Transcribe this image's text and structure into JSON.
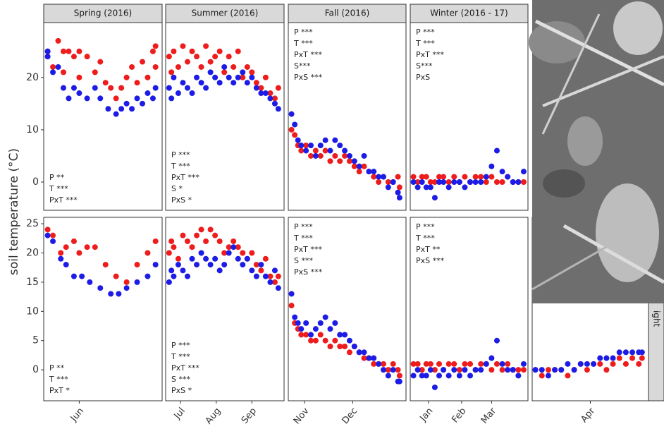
{
  "chart_data": [
    {
      "type": "scatter",
      "title": "Spring (2016)",
      "y_label": "soil temperature (°C)",
      "xlim": [
        138.5,
        183.5
      ],
      "ylim": [
        -5.4,
        30.5
      ],
      "yticks": [
        0,
        10,
        20
      ],
      "annotations": [
        "P **",
        "T ***",
        "PxT ***"
      ],
      "series": [
        {
          "color": "#ee1c1c",
          "x": [
            140,
            140,
            142,
            144,
            146,
            146,
            148,
            150,
            152,
            152,
            155,
            158,
            160,
            162,
            164,
            166,
            168,
            170,
            172,
            174,
            176,
            178,
            180,
            181,
            181
          ],
          "values": [
            25,
            24,
            22,
            27,
            21,
            25,
            25,
            24,
            25,
            20,
            24,
            21,
            23,
            19,
            18,
            16,
            18,
            20,
            22,
            19,
            23,
            20,
            25,
            26,
            22
          ]
        },
        {
          "color": "#1c1ce6",
          "x": [
            140,
            140,
            142,
            144,
            146,
            148,
            150,
            152,
            155,
            158,
            160,
            163,
            166,
            168,
            170,
            172,
            174,
            176,
            178,
            180,
            181
          ],
          "values": [
            24,
            25,
            21,
            22,
            18,
            16,
            18,
            17,
            16,
            18,
            16,
            14,
            13,
            14,
            15,
            14,
            16,
            15,
            17,
            16,
            18
          ]
        }
      ]
    },
    {
      "type": "scatter",
      "title": "Summer (2016)",
      "xlim": [
        169,
        272
      ],
      "ylim": [
        -5.4,
        30.5
      ],
      "annotations": [
        "P ***",
        "T ***",
        "PxT ***",
        "S *",
        "PxS *"
      ],
      "series": [
        {
          "color": "#ee1c1c",
          "x": [
            172,
            174,
            176,
            180,
            184,
            188,
            192,
            196,
            200,
            204,
            208,
            212,
            216,
            220,
            224,
            228,
            232,
            236,
            240,
            244,
            248,
            252,
            256,
            260,
            264,
            267
          ],
          "values": [
            24,
            21,
            25,
            22,
            26,
            23,
            25,
            24,
            22,
            26,
            23,
            24,
            25,
            21,
            24,
            22,
            25,
            20,
            22,
            21,
            19,
            18,
            20,
            17,
            16,
            18
          ]
        },
        {
          "color": "#1c1ce6",
          "x": [
            172,
            174,
            176,
            180,
            184,
            188,
            192,
            196,
            200,
            204,
            208,
            212,
            216,
            220,
            224,
            228,
            232,
            236,
            240,
            244,
            248,
            252,
            256,
            260,
            264,
            267
          ],
          "values": [
            18,
            16,
            20,
            17,
            19,
            18,
            17,
            20,
            19,
            18,
            21,
            20,
            19,
            22,
            20,
            19,
            20,
            21,
            19,
            20,
            18,
            17,
            17,
            16,
            15,
            14
          ]
        }
      ]
    },
    {
      "type": "scatter",
      "title": "Fall (2016)",
      "xlim": [
        295,
        368
      ],
      "ylim": [
        -5.4,
        30.5
      ],
      "annotations": [
        "P ***",
        "T ***",
        "PxT ***",
        "S***",
        "PxS ***"
      ],
      "series": [
        {
          "color": "#ee1c1c",
          "x": [
            297,
            299,
            301,
            303,
            306,
            309,
            312,
            315,
            318,
            321,
            324,
            327,
            330,
            333,
            336,
            339,
            342,
            345,
            348,
            351,
            354,
            357,
            360,
            363,
            364
          ],
          "values": [
            10,
            9,
            7,
            6,
            7,
            5,
            6,
            5,
            6,
            4,
            5,
            4,
            5,
            4,
            3,
            2,
            3,
            2,
            1,
            0,
            1,
            0,
            0,
            1,
            -1
          ]
        },
        {
          "color": "#1c1ce6",
          "x": [
            297,
            299,
            301,
            303,
            306,
            309,
            312,
            315,
            318,
            321,
            324,
            327,
            330,
            333,
            336,
            339,
            342,
            345,
            348,
            351,
            354,
            357,
            360,
            363,
            364
          ],
          "values": [
            13,
            11,
            8,
            7,
            6,
            7,
            5,
            7,
            8,
            6,
            8,
            7,
            6,
            5,
            4,
            3,
            5,
            2,
            2,
            1,
            1,
            -1,
            0,
            -2,
            -3
          ]
        }
      ]
    },
    {
      "type": "scatter",
      "title": "Winter (2016 - 17)",
      "xlim": [
        349,
        459
      ],
      "ylim": [
        -5.4,
        30.5
      ],
      "annotations": [
        "P ***",
        "T ***",
        "PxT ***",
        "S***",
        "PxS"
      ],
      "series": [
        {
          "color": "#ee1c1c",
          "x": [
            352,
            356,
            360,
            364,
            368,
            372,
            376,
            380,
            385,
            390,
            395,
            400,
            405,
            410,
            415,
            420,
            425,
            430,
            435,
            440,
            445,
            450,
            455
          ],
          "values": [
            1,
            0,
            1,
            1,
            0,
            0,
            1,
            1,
            0,
            1,
            0,
            1,
            0,
            1,
            1,
            0,
            1,
            0,
            0,
            1,
            0,
            0,
            0
          ]
        },
        {
          "color": "#1c1ce6",
          "x": [
            352,
            356,
            360,
            364,
            368,
            372,
            376,
            380,
            385,
            390,
            395,
            400,
            405,
            410,
            415,
            420,
            425,
            430,
            435,
            440,
            445,
            450,
            455
          ],
          "values": [
            0,
            -1,
            0,
            -1,
            -1,
            -3,
            0,
            0,
            -1,
            0,
            0,
            -1,
            0,
            0,
            0,
            1,
            3,
            6,
            2,
            1,
            0,
            0,
            2
          ]
        }
      ]
    },
    {
      "type": "scatter",
      "xlim": [
        138.5,
        183.5
      ],
      "ylim": [
        -5.3,
        26.1
      ],
      "yticks": [
        0,
        5,
        10,
        15,
        20,
        25
      ],
      "xticks": [
        {
          "value": 152,
          "label": "Jun"
        }
      ],
      "annotations": [
        "P **",
        "T ***",
        "PxT *"
      ],
      "series": [
        {
          "color": "#ee1c1c",
          "x": [
            140,
            142,
            145,
            147,
            150,
            152,
            155,
            158,
            162,
            166,
            170,
            174,
            178,
            181
          ],
          "values": [
            24,
            23,
            20,
            21,
            22,
            20,
            21,
            21,
            18,
            16,
            15,
            18,
            20,
            22
          ]
        },
        {
          "color": "#1c1ce6",
          "x": [
            140,
            142,
            145,
            147,
            150,
            153,
            156,
            160,
            164,
            167,
            170,
            174,
            178,
            181
          ],
          "values": [
            23,
            22,
            19,
            18,
            16,
            16,
            15,
            14,
            13,
            13,
            14,
            15,
            16,
            18
          ]
        }
      ]
    },
    {
      "type": "scatter",
      "xlim": [
        169,
        272
      ],
      "ylim": [
        -5.3,
        26.1
      ],
      "xticks": [
        {
          "value": 182,
          "label": "Jul"
        },
        {
          "value": 213,
          "label": "Aug"
        },
        {
          "value": 244,
          "label": "Sep"
        }
      ],
      "annotations": [
        "P ***",
        "T ***",
        "PxT ***",
        "S ***",
        "PxS *"
      ],
      "series": [
        {
          "color": "#ee1c1c",
          "x": [
            172,
            174,
            176,
            180,
            184,
            188,
            192,
            196,
            200,
            204,
            208,
            212,
            216,
            220,
            224,
            228,
            232,
            236,
            240,
            244,
            248,
            252,
            256,
            260,
            264,
            267
          ],
          "values": [
            20,
            22,
            21,
            19,
            23,
            22,
            21,
            23,
            24,
            22,
            24,
            23,
            22,
            20,
            21,
            22,
            21,
            20,
            19,
            20,
            18,
            17,
            19,
            16,
            15,
            16
          ]
        },
        {
          "color": "#1c1ce6",
          "x": [
            172,
            174,
            176,
            180,
            184,
            188,
            192,
            196,
            200,
            204,
            208,
            212,
            216,
            220,
            224,
            228,
            232,
            236,
            240,
            244,
            248,
            252,
            256,
            260,
            264,
            267
          ],
          "values": [
            15,
            17,
            16,
            18,
            17,
            16,
            19,
            18,
            20,
            19,
            18,
            19,
            17,
            18,
            20,
            21,
            19,
            18,
            19,
            17,
            16,
            18,
            16,
            15,
            17,
            14
          ]
        }
      ]
    },
    {
      "type": "scatter",
      "xlim": [
        295,
        368
      ],
      "ylim": [
        -5.3,
        26.1
      ],
      "xticks": [
        {
          "value": 305,
          "label": "Nov"
        },
        {
          "value": 335,
          "label": "Dec"
        }
      ],
      "annotations": [
        "P ***",
        "T ***",
        "PxT ***",
        "S ***",
        "PxS ***"
      ],
      "series": [
        {
          "color": "#ee1c1c",
          "x": [
            297,
            299,
            301,
            303,
            306,
            309,
            312,
            315,
            318,
            321,
            324,
            327,
            330,
            333,
            336,
            339,
            342,
            345,
            348,
            351,
            354,
            357,
            360,
            363,
            364
          ],
          "values": [
            11,
            8,
            7,
            6,
            6,
            5,
            5,
            6,
            5,
            4,
            5,
            4,
            4,
            3,
            4,
            3,
            2,
            2,
            1,
            1,
            1,
            0,
            1,
            0,
            -1
          ]
        },
        {
          "color": "#1c1ce6",
          "x": [
            297,
            299,
            301,
            303,
            306,
            309,
            312,
            315,
            318,
            321,
            324,
            327,
            330,
            333,
            336,
            339,
            342,
            345,
            348,
            351,
            354,
            357,
            360,
            363,
            364
          ],
          "values": [
            13,
            9,
            8,
            7,
            8,
            6,
            7,
            8,
            9,
            7,
            8,
            6,
            6,
            5,
            4,
            3,
            3,
            2,
            2,
            1,
            0,
            -1,
            0,
            -2,
            -2
          ]
        }
      ]
    },
    {
      "type": "scatter",
      "xlim": [
        349,
        459
      ],
      "ylim": [
        -5.3,
        26.1
      ],
      "xticks": [
        {
          "value": 366,
          "label": "Jan"
        },
        {
          "value": 397,
          "label": "Feb"
        },
        {
          "value": 425,
          "label": "Mar"
        }
      ],
      "annotations": [
        "P ***",
        "T ***",
        "PxT **",
        "PxS ***"
      ],
      "series": [
        {
          "color": "#ee1c1c",
          "x": [
            352,
            356,
            360,
            364,
            368,
            372,
            376,
            380,
            385,
            390,
            395,
            400,
            405,
            410,
            415,
            420,
            425,
            430,
            435,
            440,
            445,
            450,
            455
          ],
          "values": [
            1,
            1,
            0,
            1,
            1,
            0,
            1,
            0,
            1,
            1,
            0,
            1,
            1,
            0,
            1,
            1,
            0,
            1,
            0,
            1,
            0,
            0,
            0
          ]
        },
        {
          "color": "#1c1ce6",
          "x": [
            352,
            356,
            360,
            364,
            368,
            372,
            376,
            380,
            385,
            390,
            395,
            400,
            405,
            410,
            415,
            420,
            425,
            430,
            435,
            440,
            445,
            450,
            455
          ],
          "values": [
            -1,
            0,
            -1,
            -1,
            0,
            -3,
            -1,
            0,
            -1,
            0,
            -1,
            0,
            -1,
            0,
            0,
            1,
            2,
            5,
            1,
            0,
            0,
            -1,
            1
          ]
        }
      ]
    },
    {
      "type": "scatter",
      "row_label": "ight",
      "xlim": [
        438,
        474
      ],
      "ylim": [
        -5.3,
        26.1
      ],
      "xticks": [
        {
          "value": 456,
          "label": "Apr"
        }
      ],
      "series": [
        {
          "color": "#ee1c1c",
          "x": [
            439,
            441,
            443,
            445,
            447,
            449,
            451,
            453,
            455,
            457,
            459,
            461,
            463,
            465,
            467,
            469,
            471,
            472
          ],
          "values": [
            0,
            -1,
            0,
            0,
            0,
            -1,
            0,
            1,
            0,
            1,
            1,
            0,
            1,
            2,
            1,
            2,
            1,
            2
          ]
        },
        {
          "color": "#1c1ce6",
          "x": [
            439,
            441,
            443,
            445,
            447,
            449,
            451,
            453,
            455,
            457,
            459,
            461,
            463,
            465,
            467,
            469,
            471,
            472
          ],
          "values": [
            0,
            0,
            -1,
            0,
            0,
            1,
            0,
            1,
            1,
            1,
            2,
            2,
            2,
            3,
            3,
            3,
            3,
            3
          ]
        }
      ]
    }
  ]
}
